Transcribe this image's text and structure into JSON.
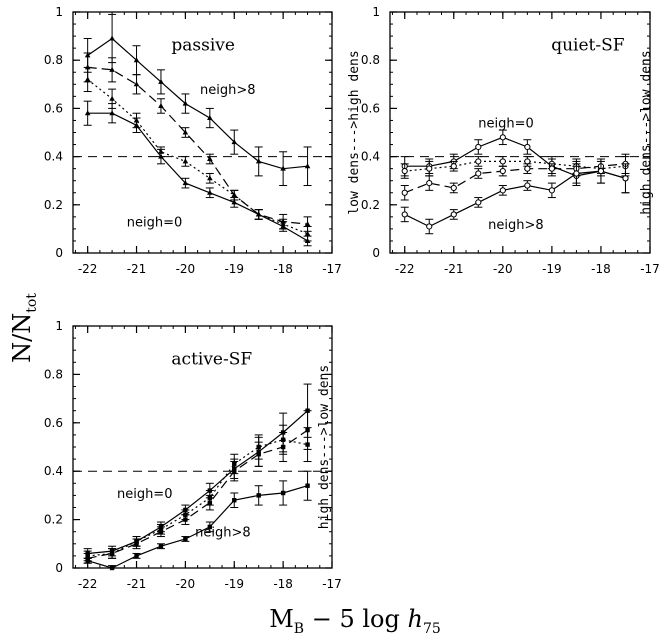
{
  "figure": {
    "ylabel_main": "N/N",
    "ylabel_sub": "tot",
    "xlabel_main": "M",
    "xlabel_sub": "B",
    "xlabel_mid": " − 5 log ",
    "xlabel_h": "h",
    "xlabel_h_sub": "75"
  },
  "chart_data": [
    {
      "type": "line",
      "title": "passive",
      "side_label": "low dens--->high dens",
      "xlim": [
        -22.3,
        -17
      ],
      "ylim": [
        0,
        1
      ],
      "xticks": [
        -22,
        -21,
        -20,
        -19,
        -18,
        -17
      ],
      "yticks": [
        0,
        0.2,
        0.4,
        0.6,
        0.8,
        1
      ],
      "xtick_labels": [
        "-22",
        "-21",
        "-20",
        "-19",
        "-18",
        "-17"
      ],
      "ytick_labels": [
        "0",
        "0.2",
        "0.4",
        "0.6",
        "0.8",
        "1"
      ],
      "reference_line": 0.4,
      "annotations": [
        {
          "text": "neigh>8",
          "x": -19.7,
          "y": 0.66
        },
        {
          "text": "neigh=0",
          "x": -21.2,
          "y": 0.11
        }
      ],
      "series": [
        {
          "name": "neigh>8",
          "style": "solid",
          "marker": "tri",
          "x": [
            -22,
            -21.5,
            -21,
            -20.5,
            -20,
            -19.5,
            -19,
            -18.5,
            -18,
            -17.5
          ],
          "y": [
            0.82,
            0.89,
            0.8,
            0.71,
            0.62,
            0.56,
            0.46,
            0.38,
            0.35,
            0.36
          ],
          "err": [
            0.07,
            0.1,
            0.06,
            0.05,
            0.04,
            0.04,
            0.05,
            0.06,
            0.07,
            0.08
          ]
        },
        {
          "name": "",
          "style": "dashed",
          "marker": "tri",
          "x": [
            -22,
            -21.5,
            -21,
            -20.5,
            -20,
            -19.5,
            -19,
            -18.5,
            -18,
            -17.5
          ],
          "y": [
            0.77,
            0.76,
            0.7,
            0.61,
            0.5,
            0.39,
            0.24,
            0.16,
            0.13,
            0.12
          ],
          "err": [
            0.06,
            0.05,
            0.04,
            0.03,
            0.02,
            0.02,
            0.02,
            0.02,
            0.03,
            0.03
          ]
        },
        {
          "name": "",
          "style": "dotted",
          "marker": "tri",
          "x": [
            -22,
            -21.5,
            -21,
            -20.5,
            -20,
            -19.5,
            -19,
            -18.5,
            -18,
            -17.5
          ],
          "y": [
            0.72,
            0.64,
            0.55,
            0.42,
            0.38,
            0.31,
            0.24,
            0.16,
            0.12,
            0.08
          ],
          "err": [
            0.05,
            0.04,
            0.03,
            0.02,
            0.02,
            0.02,
            0.02,
            0.02,
            0.02,
            0.03
          ]
        },
        {
          "name": "neigh=0",
          "style": "solid",
          "marker": "tri",
          "x": [
            -22,
            -21.5,
            -21,
            -20.5,
            -20,
            -19.5,
            -19,
            -18.5,
            -18,
            -17.5
          ],
          "y": [
            0.58,
            0.58,
            0.53,
            0.4,
            0.29,
            0.25,
            0.21,
            0.16,
            0.11,
            0.05
          ],
          "err": [
            0.05,
            0.04,
            0.03,
            0.03,
            0.02,
            0.02,
            0.02,
            0.02,
            0.02,
            0.02
          ]
        }
      ]
    },
    {
      "type": "line",
      "title": "quiet-SF",
      "side_label": "high dens--->low dens",
      "xlim": [
        -22.3,
        -17
      ],
      "ylim": [
        0,
        1
      ],
      "xticks": [
        -22,
        -21,
        -20,
        -19,
        -18,
        -17
      ],
      "yticks": [
        0,
        0.2,
        0.4,
        0.6,
        0.8,
        1
      ],
      "xtick_labels": [
        "-22",
        "-21",
        "-20",
        "-19",
        "-18",
        "-17"
      ],
      "ytick_labels": [
        "0",
        "0.2",
        "0.4",
        "0.6",
        "0.8",
        "1"
      ],
      "reference_line": 0.4,
      "annotations": [
        {
          "text": "neigh=0",
          "x": -20.5,
          "y": 0.52
        },
        {
          "text": "neigh>8",
          "x": -20.3,
          "y": 0.1
        }
      ],
      "series": [
        {
          "name": "neigh=0",
          "style": "solid",
          "marker": "circ",
          "x": [
            -22,
            -21.5,
            -21,
            -20.5,
            -20,
            -19.5,
            -19,
            -18.5,
            -18,
            -17.5
          ],
          "y": [
            0.36,
            0.36,
            0.38,
            0.44,
            0.48,
            0.44,
            0.36,
            0.32,
            0.34,
            0.31
          ],
          "err": [
            0.04,
            0.03,
            0.03,
            0.03,
            0.03,
            0.03,
            0.04,
            0.04,
            0.05,
            0.06
          ]
        },
        {
          "name": "",
          "style": "dotted",
          "marker": "circ",
          "x": [
            -22,
            -21.5,
            -21,
            -20.5,
            -20,
            -19.5,
            -19,
            -18.5,
            -18,
            -17.5
          ],
          "y": [
            0.34,
            0.35,
            0.36,
            0.38,
            0.38,
            0.38,
            0.37,
            0.36,
            0.35,
            0.36
          ],
          "err": [
            0.03,
            0.03,
            0.02,
            0.02,
            0.02,
            0.02,
            0.02,
            0.03,
            0.03,
            0.04
          ]
        },
        {
          "name": "",
          "style": "dashed",
          "marker": "circ",
          "x": [
            -22,
            -21.5,
            -21,
            -20.5,
            -20,
            -19.5,
            -19,
            -18.5,
            -18,
            -17.5
          ],
          "y": [
            0.25,
            0.29,
            0.27,
            0.33,
            0.34,
            0.35,
            0.35,
            0.35,
            0.36,
            0.37
          ],
          "err": [
            0.03,
            0.03,
            0.02,
            0.02,
            0.02,
            0.02,
            0.02,
            0.03,
            0.03,
            0.04
          ]
        },
        {
          "name": "neigh>8",
          "style": "solid",
          "marker": "circ",
          "x": [
            -22,
            -21.5,
            -21,
            -20.5,
            -20,
            -19.5,
            -19,
            -18.5,
            -18,
            -17.5
          ],
          "y": [
            0.16,
            0.11,
            0.16,
            0.21,
            0.26,
            0.28,
            0.26,
            0.33,
            0.34,
            0.31
          ],
          "err": [
            0.03,
            0.03,
            0.02,
            0.02,
            0.02,
            0.02,
            0.03,
            0.04,
            0.05,
            0.06
          ]
        }
      ]
    },
    {
      "type": "line",
      "title": "active-SF",
      "side_label": "high dens--->low dens",
      "xlim": [
        -22.3,
        -17
      ],
      "ylim": [
        0,
        1
      ],
      "xticks": [
        -22,
        -21,
        -20,
        -19,
        -18,
        -17
      ],
      "yticks": [
        0,
        0.2,
        0.4,
        0.6,
        0.8,
        1
      ],
      "xtick_labels": [
        "-22",
        "-21",
        "-20",
        "-19",
        "-18",
        "-17"
      ],
      "ytick_labels": [
        "0",
        "0.2",
        "0.4",
        "0.6",
        "0.8",
        "1"
      ],
      "reference_line": 0.4,
      "annotations": [
        {
          "text": "neigh=0",
          "x": -21.4,
          "y": 0.29
        },
        {
          "text": "neigh>8",
          "x": -19.8,
          "y": 0.13
        }
      ],
      "series": [
        {
          "name": "neigh=0",
          "style": "solid",
          "marker": "sq",
          "x": [
            -22,
            -21.5,
            -21,
            -20.5,
            -20,
            -19.5,
            -19,
            -18.5,
            -18,
            -17.5
          ],
          "y": [
            0.06,
            0.07,
            0.11,
            0.17,
            0.24,
            0.32,
            0.41,
            0.48,
            0.56,
            0.65
          ],
          "err": [
            0.02,
            0.02,
            0.02,
            0.02,
            0.02,
            0.03,
            0.04,
            0.06,
            0.08,
            0.11
          ]
        },
        {
          "name": "",
          "style": "dotted",
          "marker": "sq",
          "x": [
            -22,
            -21.5,
            -21,
            -20.5,
            -20,
            -19.5,
            -19,
            -18.5,
            -18,
            -17.5
          ],
          "y": [
            0.05,
            0.06,
            0.11,
            0.16,
            0.22,
            0.29,
            0.43,
            0.5,
            0.53,
            0.51
          ],
          "err": [
            0.02,
            0.02,
            0.02,
            0.02,
            0.02,
            0.03,
            0.04,
            0.05,
            0.06,
            0.07
          ]
        },
        {
          "name": "",
          "style": "dashed",
          "marker": "sq",
          "x": [
            -22,
            -21.5,
            -21,
            -20.5,
            -20,
            -19.5,
            -19,
            -18.5,
            -18,
            -17.5
          ],
          "y": [
            0.04,
            0.06,
            0.1,
            0.15,
            0.2,
            0.27,
            0.4,
            0.47,
            0.5,
            0.57
          ],
          "err": [
            0.02,
            0.02,
            0.02,
            0.02,
            0.02,
            0.03,
            0.04,
            0.05,
            0.06,
            0.08
          ]
        },
        {
          "name": "neigh>8",
          "style": "solid",
          "marker": "sq",
          "x": [
            -22,
            -21.5,
            -21,
            -20.5,
            -20,
            -19.5,
            -19,
            -18.5,
            -18,
            -17.5
          ],
          "y": [
            0.03,
            0.0,
            0.05,
            0.09,
            0.12,
            0.17,
            0.28,
            0.3,
            0.31,
            0.34
          ],
          "err": [
            0.01,
            0.01,
            0.01,
            0.01,
            0.01,
            0.02,
            0.03,
            0.04,
            0.05,
            0.06
          ]
        }
      ]
    }
  ]
}
